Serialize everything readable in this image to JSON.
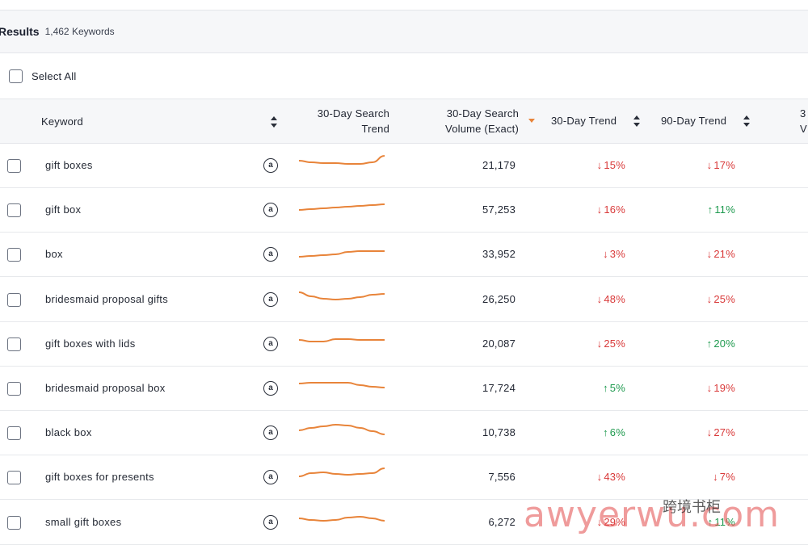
{
  "results": {
    "title": "Results",
    "count": "1,462 Keywords"
  },
  "select_all": {
    "label": "Select All"
  },
  "columns": {
    "keyword": "Keyword",
    "trend_chart": [
      "30-Day Search",
      "Trend"
    ],
    "volume": [
      "30-Day Search",
      "Volume (Exact)"
    ],
    "trend30": "30-Day Trend",
    "trend90": "90-Day Trend",
    "next_partial": [
      "3",
      "V"
    ]
  },
  "icons": {
    "amazon": "a",
    "down_arrow": "↓",
    "up_arrow": "↑"
  },
  "colors": {
    "down": "#d93a3a",
    "up": "#1f9a4f",
    "sparkline": "#e8843a"
  },
  "rows": [
    {
      "keyword": "gift boxes",
      "volume": "21,179",
      "trend30": "15%",
      "trend30_dir": "down",
      "trend90": "17%",
      "trend90_dir": "down",
      "spark": [
        0.35,
        0.45,
        0.5,
        0.5,
        0.55,
        0.55,
        0.45,
        0.05
      ]
    },
    {
      "keyword": "gift box",
      "volume": "57,253",
      "trend30": "16%",
      "trend30_dir": "down",
      "trend90": "11%",
      "trend90_dir": "up",
      "spark": [
        0.65,
        0.6,
        0.55,
        0.5,
        0.45,
        0.4,
        0.35,
        0.3
      ]
    },
    {
      "keyword": "box",
      "volume": "33,952",
      "trend30": "3%",
      "trend30_dir": "down",
      "trend90": "21%",
      "trend90_dir": "down",
      "spark": [
        0.8,
        0.75,
        0.7,
        0.65,
        0.5,
        0.45,
        0.45,
        0.45
      ]
    },
    {
      "keyword": "bridesmaid proposal gifts",
      "volume": "26,250",
      "trend30": "48%",
      "trend30_dir": "down",
      "trend90": "25%",
      "trend90_dir": "down",
      "spark": [
        0.2,
        0.45,
        0.6,
        0.65,
        0.6,
        0.5,
        0.35,
        0.3
      ]
    },
    {
      "keyword": "gift boxes with lids",
      "volume": "20,087",
      "trend30": "25%",
      "trend30_dir": "down",
      "trend90": "20%",
      "trend90_dir": "up",
      "spark": [
        0.4,
        0.5,
        0.5,
        0.35,
        0.35,
        0.4,
        0.4,
        0.4
      ]
    },
    {
      "keyword": "bridesmaid proposal box",
      "volume": "17,724",
      "trend30": "5%",
      "trend30_dir": "up",
      "trend90": "19%",
      "trend90_dir": "down",
      "spark": [
        0.35,
        0.3,
        0.3,
        0.3,
        0.3,
        0.45,
        0.55,
        0.6
      ]
    },
    {
      "keyword": "black box",
      "volume": "10,738",
      "trend30": "6%",
      "trend30_dir": "up",
      "trend90": "27%",
      "trend90_dir": "down",
      "spark": [
        0.5,
        0.35,
        0.25,
        0.15,
        0.2,
        0.35,
        0.55,
        0.75
      ]
    },
    {
      "keyword": "gift boxes for presents",
      "volume": "7,556",
      "trend30": "43%",
      "trend30_dir": "down",
      "trend90": "7%",
      "trend90_dir": "down",
      "spark": [
        0.6,
        0.4,
        0.35,
        0.45,
        0.5,
        0.45,
        0.4,
        0.1
      ]
    },
    {
      "keyword": "small gift boxes",
      "volume": "6,272",
      "trend30": "29%",
      "trend30_dir": "down",
      "trend90": "11%",
      "trend90_dir": "up",
      "spark": [
        0.4,
        0.5,
        0.55,
        0.5,
        0.35,
        0.3,
        0.4,
        0.55
      ]
    }
  ]
}
